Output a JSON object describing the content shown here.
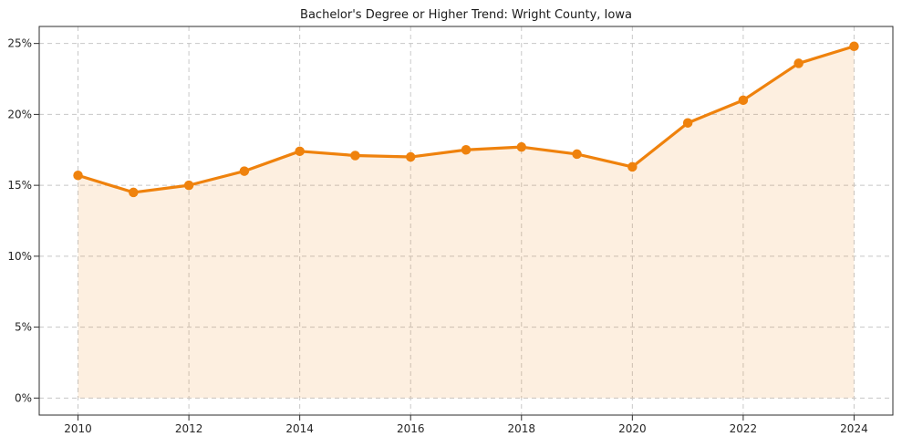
{
  "chart_data": {
    "type": "line",
    "title": "Bachelor's Degree or Higher Trend: Wright County, Iowa",
    "xlabel": "",
    "ylabel": "",
    "unit": "%",
    "x": [
      2010,
      2011,
      2012,
      2013,
      2014,
      2015,
      2016,
      2017,
      2018,
      2019,
      2020,
      2021,
      2022,
      2023,
      2024
    ],
    "values": [
      15.7,
      14.5,
      15.0,
      16.0,
      17.4,
      17.1,
      17.0,
      17.5,
      17.7,
      17.2,
      16.3,
      19.4,
      21.0,
      23.6,
      24.8
    ],
    "baseline_fill": 0,
    "xlim": [
      2009.3,
      2024.7
    ],
    "ylim": [
      -1.2,
      26.2
    ],
    "x_ticks": [
      2010,
      2012,
      2014,
      2016,
      2018,
      2020,
      2022,
      2024
    ],
    "x_tick_labels": [
      "2010",
      "2012",
      "2014",
      "2016",
      "2018",
      "2020",
      "2022",
      "2024"
    ],
    "y_ticks": [
      0,
      5,
      10,
      15,
      20,
      25
    ],
    "y_tick_labels": [
      "0%",
      "5%",
      "10%",
      "15%",
      "20%",
      "25%"
    ],
    "grid": true,
    "grid_style": "dashed",
    "legend": "none",
    "marker": {
      "shape": "circle",
      "size": 10.5
    },
    "line_width": 3.2,
    "colors": {
      "line": "#EF820D",
      "fill": "rgba(239,130,13,0.13)",
      "grid": "#c8c8c8",
      "spine": "#2e2e2e",
      "tick_label": "#262626",
      "title": "#1a1a1a",
      "background": "#ffffff"
    }
  }
}
